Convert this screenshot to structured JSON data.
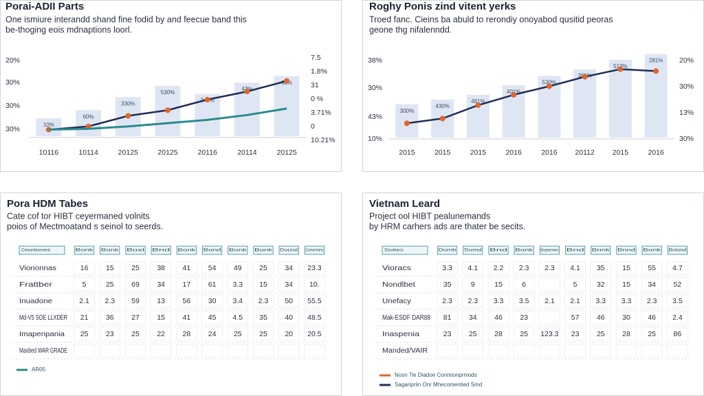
{
  "chart_data": [
    {
      "type": "bar-line",
      "title": "Porai-ADII Parts",
      "subtitle": [
        "One ismiure interandd shand fine fodid by and feecue band this",
        "be-thoging eois mdnaptions loorl."
      ],
      "categories": [
        "10116",
        "10114",
        "20125",
        "20125",
        "20116",
        "20114",
        "20125"
      ],
      "ylim": [
        0,
        100
      ],
      "y_labels": [
        "20%",
        "30%",
        "30%",
        "30%"
      ],
      "y2_labels": [
        "7.5",
        "1.8%",
        "31",
        "0 %",
        "3.71%",
        "0",
        "10.21%"
      ],
      "bars": {
        "color": "#dfe6f3",
        "values": [
          22,
          32,
          48,
          62,
          52,
          66,
          74
        ],
        "value_labels": [
          "10%",
          "60%",
          "330%",
          "530%",
          "340%",
          "43%",
          "50%"
        ]
      },
      "series": [
        {
          "color": "#1f2d55",
          "marker_color": "#e0662a",
          "values": [
            8,
            12,
            25,
            32,
            45,
            55,
            68
          ]
        },
        {
          "color": "#2a8a8f",
          "values": [
            8,
            9,
            12,
            16,
            20,
            26,
            34
          ]
        }
      ]
    },
    {
      "type": "bar-line",
      "title": "Roghy Ponis zind vitent yerks",
      "subtitle": [
        "Troed fanc. Cieins ba abuld to rerondiy onoyabod qusitid peoras",
        "geone thg nifalenndd."
      ],
      "categories": [
        "2015",
        "2015",
        "2015",
        "2016",
        "2016",
        "20112",
        "2015",
        "2016"
      ],
      "ylim": [
        0,
        100
      ],
      "y_labels": [
        "38%",
        "30%",
        "43%",
        "10%"
      ],
      "y2_labels": [
        "20%",
        "30%",
        "13%",
        "30%"
      ],
      "bars": {
        "color": "#dfe6f3",
        "values": [
          35,
          40,
          45,
          55,
          65,
          72,
          82,
          88
        ],
        "value_labels": [
          "300%",
          "430%",
          "481%",
          "401%",
          "530%",
          "361%",
          "513%",
          "281%"
        ]
      },
      "series": [
        {
          "color": "#1f2d55",
          "marker_color": "#e0662a",
          "values": [
            15,
            20,
            34,
            45,
            54,
            64,
            72,
            70
          ]
        }
      ]
    }
  ],
  "tables": [
    {
      "title": "Pora HDM Tabes",
      "subtitle": [
        "Cate cof tor HIBT ceyermaned volnits",
        "poios of Mectmoatand s seinol to seerds."
      ],
      "header": [
        "Cesontionnent",
        "Bonk",
        "Bonk",
        "Boxl",
        "Bnd",
        "Bonk",
        "Bond",
        "Bonk",
        "Bonk",
        "Dound",
        "Comenrions"
      ],
      "rows": [
        {
          "label": "Viononnas",
          "cells": [
            "16",
            "15",
            "25",
            "38",
            "41",
            "54",
            "49",
            "25",
            "34",
            "23.3"
          ]
        },
        {
          "label": "Frattber",
          "cells": [
            "5",
            "25",
            "69",
            "34",
            "17",
            "61",
            "3.3",
            "15",
            "34",
            "10."
          ]
        },
        {
          "label": "Inuadone",
          "cells": [
            "2.1",
            "2.3",
            "59",
            "13",
            "56",
            "30",
            "3.4",
            "2.3",
            "50",
            "55.5"
          ]
        },
        {
          "label": "Md-V5 SOE LLXDER",
          "cells": [
            "21",
            "36",
            "27",
            "15",
            "41",
            "45",
            "4.5",
            "35",
            "40",
            "48.5"
          ]
        },
        {
          "label": "Imapenpania",
          "cells": [
            "25",
            "23",
            "25",
            "22",
            "28",
            "24",
            "25",
            "25",
            "20",
            "20.5"
          ]
        },
        {
          "label": "Maxbed WAR GRADE",
          "cells": []
        }
      ],
      "legend": [
        {
          "label": "AR05",
          "color": "#2a8a8f"
        }
      ]
    },
    {
      "title": "Vietnam Leard",
      "subtitle": [
        "Project ool HIBT pealunemands",
        "by HRM carhers ads are thater be secits."
      ],
      "header": [
        "Stsolkecs",
        "Dumb",
        "Sumd",
        "Bnd",
        "Bonk",
        "Bnopnamnens",
        "Bnd",
        "Bnnk",
        "Bnnd",
        "Bonk",
        "Bntond"
      ],
      "rows": [
        {
          "label": "Vioracs",
          "cells": [
            "3.3",
            "4.1",
            "2.2",
            "2.3",
            "2.3",
            "4.1",
            "35",
            "15",
            "55",
            "4.7"
          ]
        },
        {
          "label": "Nondlbet",
          "cells": [
            "35",
            "9",
            "15",
            "6",
            null,
            "5",
            "32",
            "15",
            "34",
            "52"
          ]
        },
        {
          "label": "Unefacy",
          "cells": [
            "2.3",
            "2.3",
            "3.3",
            "3.5",
            "2.1",
            "2.1",
            "3.3",
            "3.3",
            "2.3",
            "3.5"
          ]
        },
        {
          "label": "Mak-ESDF DAR88",
          "cells": [
            "81",
            "34",
            "46",
            "23",
            null,
            "57",
            "46",
            "30",
            "46",
            "2.4"
          ]
        },
        {
          "label": "Inaspenia",
          "cells": [
            "23",
            "25",
            "28",
            "25",
            "123.3",
            "23",
            "25",
            "28",
            "25",
            "86"
          ]
        },
        {
          "label": "Manded/VAIR",
          "cells": []
        }
      ],
      "legend": [
        {
          "label": "Nosn Tie Diadoe Conmionprniods",
          "color": "#e0662a"
        },
        {
          "label": "Sagaripriin Onr Mhecomentied Smd",
          "color": "#1f2d55"
        }
      ]
    }
  ]
}
